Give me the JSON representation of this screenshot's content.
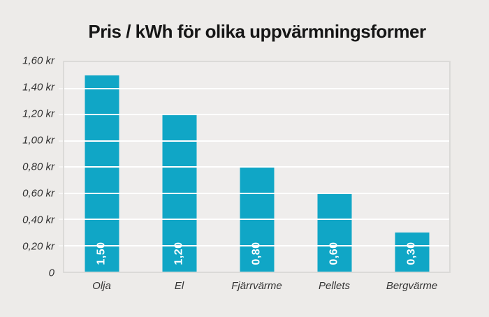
{
  "page": {
    "background_color": "#edebe9",
    "plot_background_color": "#efedec",
    "gridline_color": "#ffffff",
    "plot_border_color": "#dbdad8"
  },
  "chart_data": {
    "type": "bar",
    "title": "Pris / kWh för olika uppvärmningsformer",
    "xlabel": "",
    "ylabel": "",
    "categories": [
      "Olja",
      "El",
      "Fjärrvärme",
      "Pellets",
      "Bergvärme"
    ],
    "values": [
      1.5,
      1.2,
      0.8,
      0.6,
      0.3
    ],
    "value_labels": [
      "1,50",
      "1,20",
      "0,80",
      "0,60",
      "0,30"
    ],
    "value_label_position": "inside-bottom-rotated",
    "bar_color": "#10a6c6",
    "ylim": [
      0,
      1.6
    ],
    "y_tick_step": 0.2,
    "y_ticks": [
      {
        "value": 1.6,
        "label": "1,60 kr"
      },
      {
        "value": 1.4,
        "label": "1,40 kr"
      },
      {
        "value": 1.2,
        "label": "1,20 kr"
      },
      {
        "value": 1.0,
        "label": "1,00 kr"
      },
      {
        "value": 0.8,
        "label": "0,80 kr"
      },
      {
        "value": 0.6,
        "label": "0,60 kr"
      },
      {
        "value": 0.4,
        "label": "0,40 kr"
      },
      {
        "value": 0.2,
        "label": "0,20 kr"
      },
      {
        "value": 0.0,
        "label": "0"
      }
    ],
    "grid": true,
    "legend_position": "none"
  }
}
